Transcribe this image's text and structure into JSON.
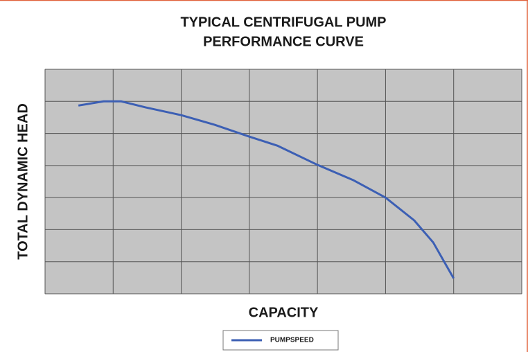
{
  "chart_data": {
    "type": "line",
    "title": [
      "TYPICAL CENTRIFUGAL PUMP",
      "PERFORMANCE CURVE"
    ],
    "x_label": "CAPACITY",
    "y_label": "TOTAL DYNAMIC HEAD",
    "x": [
      0.49,
      0.86,
      1.12,
      1.48,
      2.0,
      2.49,
      3.0,
      3.41,
      4.0,
      4.53,
      5.0,
      5.42,
      5.7,
      6.0
    ],
    "series": [
      {
        "name": "PUMPSPEED",
        "color": "#3c5fb4",
        "values": [
          5.87,
          6.0,
          6.0,
          5.81,
          5.57,
          5.27,
          4.9,
          4.62,
          4.02,
          3.54,
          3.0,
          2.29,
          1.6,
          0.48
        ]
      }
    ],
    "xlim": [
      0,
      7
    ],
    "ylim": [
      0,
      7
    ],
    "xticks": [
      0,
      1,
      2,
      3,
      4,
      5,
      6,
      7
    ],
    "yticks": [
      0,
      1,
      2,
      3,
      4,
      5,
      6,
      7
    ],
    "grid": true
  }
}
